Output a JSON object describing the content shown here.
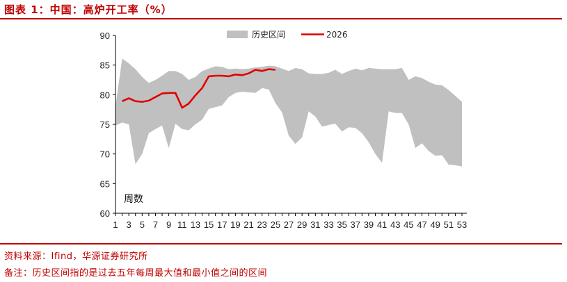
{
  "header": {
    "title": "图表 1：中国：高炉开工率（%）"
  },
  "footer": {
    "source": "资料来源：Ifind，华源证券研究所",
    "note": "备注：历史区间指的是过去五年每周最大值和最小值之间的区间"
  },
  "colors": {
    "accent": "#c00000",
    "band": "#c0c0c0",
    "line": "#e00000"
  },
  "chart_data": {
    "type": "area",
    "title": "",
    "xlabel": "",
    "ylabel": "",
    "unit_label": "周数",
    "ylim": [
      60,
      90
    ],
    "yticks": [
      60,
      65,
      70,
      75,
      80,
      85,
      90
    ],
    "xlim": [
      1,
      53
    ],
    "xticks": [
      1,
      3,
      5,
      7,
      9,
      11,
      13,
      15,
      17,
      19,
      21,
      23,
      25,
      27,
      29,
      31,
      33,
      35,
      37,
      39,
      41,
      43,
      45,
      47,
      49,
      51,
      53
    ],
    "grid": false,
    "legend": {
      "position": "top",
      "items": [
        "历史区间",
        "2026"
      ]
    },
    "x": [
      1,
      2,
      3,
      4,
      5,
      6,
      7,
      8,
      9,
      10,
      11,
      12,
      13,
      14,
      15,
      16,
      17,
      18,
      19,
      20,
      21,
      22,
      23,
      24,
      25,
      26,
      27,
      28,
      29,
      30,
      31,
      32,
      33,
      34,
      35,
      36,
      37,
      38,
      39,
      40,
      41,
      42,
      43,
      44,
      45,
      46,
      47,
      48,
      49,
      50,
      51,
      52,
      53
    ],
    "series": [
      {
        "name": "历史区间",
        "kind": "band",
        "upper": [
          78.0,
          86.1,
          85.3,
          84.3,
          83.0,
          82.0,
          82.5,
          83.2,
          84.0,
          84.0,
          83.5,
          82.5,
          83.0,
          84.0,
          84.4,
          84.8,
          84.7,
          84.3,
          84.4,
          84.3,
          84.4,
          84.6,
          84.7,
          84.9,
          84.8,
          84.4,
          84.0,
          84.5,
          84.3,
          83.6,
          83.5,
          83.5,
          83.7,
          84.2,
          83.5,
          84.0,
          84.4,
          84.1,
          84.5,
          84.4,
          84.3,
          84.3,
          84.3,
          84.5,
          82.5,
          83.1,
          82.8,
          82.2,
          81.7,
          81.6,
          80.8,
          79.8,
          78.8
        ],
        "lower": [
          74.8,
          75.3,
          75.0,
          68.3,
          70.0,
          73.5,
          74.2,
          74.8,
          71.0,
          75.1,
          74.2,
          74.0,
          75.0,
          75.8,
          77.6,
          77.9,
          78.2,
          79.6,
          80.3,
          80.5,
          80.4,
          80.3,
          81.1,
          80.9,
          78.6,
          77.0,
          73.1,
          71.7,
          72.8,
          77.2,
          76.3,
          74.6,
          74.9,
          75.1,
          73.8,
          74.5,
          74.4,
          73.5,
          72.0,
          70.0,
          68.5,
          77.2,
          76.9,
          76.9,
          75.0,
          71.0,
          71.8,
          70.5,
          69.7,
          69.8,
          68.2,
          68.1,
          67.9
        ]
      },
      {
        "name": "2026",
        "kind": "line",
        "x": [
          2,
          3,
          4,
          5,
          6,
          7,
          8,
          9,
          10,
          11,
          12,
          13,
          14,
          15,
          16,
          17,
          18,
          19,
          20,
          21,
          22,
          23,
          24,
          25
        ],
        "values": [
          78.9,
          79.4,
          78.9,
          78.8,
          79.0,
          79.6,
          80.2,
          80.3,
          80.3,
          77.8,
          78.5,
          79.9,
          81.1,
          83.1,
          83.2,
          83.2,
          83.1,
          83.4,
          83.3,
          83.6,
          84.2,
          84.0,
          84.3,
          84.2
        ]
      }
    ]
  }
}
